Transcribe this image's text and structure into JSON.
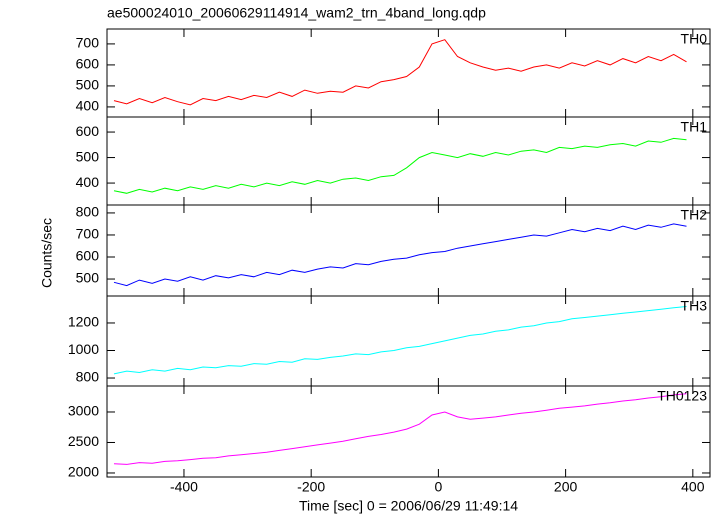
{
  "chart_data": [
    {
      "type": "line",
      "title": "ae500024010_20060629114914_wam2_trn_4band_long.qdp",
      "label": "TH0",
      "color": "#ff0000",
      "x": [
        -510,
        -490,
        -470,
        -450,
        -430,
        -410,
        -390,
        -370,
        -350,
        -330,
        -310,
        -290,
        -270,
        -250,
        -230,
        -210,
        -190,
        -170,
        -150,
        -130,
        -110,
        -90,
        -70,
        -50,
        -30,
        -10,
        10,
        30,
        50,
        70,
        90,
        110,
        130,
        150,
        170,
        190,
        210,
        230,
        250,
        270,
        290,
        310,
        330,
        350,
        370,
        390
      ],
      "values": [
        430,
        415,
        440,
        420,
        445,
        425,
        410,
        440,
        430,
        450,
        435,
        455,
        445,
        470,
        450,
        480,
        465,
        475,
        470,
        500,
        490,
        520,
        530,
        545,
        590,
        700,
        720,
        640,
        610,
        590,
        575,
        585,
        570,
        590,
        600,
        585,
        610,
        595,
        620,
        600,
        630,
        610,
        640,
        620,
        650,
        615
      ],
      "xlim": [
        -521,
        427
      ],
      "xticks": [
        -400,
        -200,
        0,
        200,
        400
      ],
      "ylim": [
        352,
        771
      ],
      "yticks": [
        400,
        500,
        600,
        700
      ]
    },
    {
      "type": "line",
      "label": "TH1",
      "color": "#00ff00",
      "x": [
        -510,
        -490,
        -470,
        -450,
        -430,
        -410,
        -390,
        -370,
        -350,
        -330,
        -310,
        -290,
        -270,
        -250,
        -230,
        -210,
        -190,
        -170,
        -150,
        -130,
        -110,
        -90,
        -70,
        -50,
        -30,
        -10,
        10,
        30,
        50,
        70,
        90,
        110,
        130,
        150,
        170,
        190,
        210,
        230,
        250,
        270,
        290,
        310,
        330,
        350,
        370,
        390
      ],
      "values": [
        370,
        360,
        375,
        365,
        380,
        370,
        385,
        375,
        390,
        380,
        395,
        385,
        400,
        390,
        405,
        395,
        410,
        400,
        415,
        420,
        410,
        425,
        430,
        460,
        500,
        520,
        510,
        500,
        515,
        505,
        520,
        510,
        525,
        530,
        520,
        540,
        535,
        545,
        540,
        550,
        555,
        545,
        565,
        560,
        575,
        570
      ],
      "xlim": [
        -521,
        427
      ],
      "xticks": [
        -400,
        -200,
        0,
        200,
        400
      ],
      "ylim": [
        314,
        659
      ],
      "yticks": [
        400,
        500,
        600
      ]
    },
    {
      "type": "line",
      "label": "TH2",
      "color": "#0000ff",
      "ylabel": "Counts/sec",
      "x": [
        -510,
        -490,
        -470,
        -450,
        -430,
        -410,
        -390,
        -370,
        -350,
        -330,
        -310,
        -290,
        -270,
        -250,
        -230,
        -210,
        -190,
        -170,
        -150,
        -130,
        -110,
        -90,
        -70,
        -50,
        -30,
        -10,
        10,
        30,
        50,
        70,
        90,
        110,
        130,
        150,
        170,
        190,
        210,
        230,
        250,
        270,
        290,
        310,
        330,
        350,
        370,
        390
      ],
      "values": [
        485,
        470,
        495,
        480,
        500,
        490,
        510,
        495,
        515,
        505,
        520,
        510,
        530,
        520,
        540,
        530,
        545,
        555,
        550,
        570,
        565,
        580,
        590,
        595,
        610,
        620,
        625,
        640,
        650,
        660,
        670,
        680,
        690,
        700,
        695,
        710,
        725,
        715,
        730,
        720,
        740,
        725,
        745,
        735,
        750,
        740
      ],
      "xlim": [
        -521,
        427
      ],
      "xticks": [
        -400,
        -200,
        0,
        200,
        400
      ],
      "ylim": [
        423,
        836
      ],
      "yticks": [
        500,
        600,
        700,
        800
      ]
    },
    {
      "type": "line",
      "label": "TH3",
      "color": "#00ffff",
      "x": [
        -510,
        -490,
        -470,
        -450,
        -430,
        -410,
        -390,
        -370,
        -350,
        -330,
        -310,
        -290,
        -270,
        -250,
        -230,
        -210,
        -190,
        -170,
        -150,
        -130,
        -110,
        -90,
        -70,
        -50,
        -30,
        -10,
        10,
        30,
        50,
        70,
        90,
        110,
        130,
        150,
        170,
        190,
        210,
        230,
        250,
        270,
        290,
        310,
        330,
        350,
        370,
        390
      ],
      "values": [
        830,
        850,
        840,
        860,
        850,
        870,
        860,
        880,
        875,
        890,
        885,
        905,
        900,
        920,
        915,
        940,
        935,
        950,
        960,
        975,
        970,
        990,
        1000,
        1020,
        1030,
        1050,
        1070,
        1090,
        1110,
        1120,
        1140,
        1150,
        1170,
        1180,
        1200,
        1210,
        1230,
        1240,
        1250,
        1260,
        1270,
        1280,
        1290,
        1300,
        1310,
        1320
      ],
      "xlim": [
        -521,
        427
      ],
      "xticks": [
        -400,
        -200,
        0,
        200,
        400
      ],
      "ylim": [
        742,
        1396
      ],
      "yticks": [
        800,
        1000,
        1200
      ]
    },
    {
      "type": "line",
      "label": "TH0123",
      "color": "#ff00ff",
      "xlabel": "Time [sec] 0 = 2006/06/29 11:49:14",
      "x": [
        -510,
        -490,
        -470,
        -450,
        -430,
        -410,
        -390,
        -370,
        -350,
        -330,
        -310,
        -290,
        -270,
        -250,
        -230,
        -210,
        -190,
        -170,
        -150,
        -130,
        -110,
        -90,
        -70,
        -50,
        -30,
        -10,
        10,
        30,
        50,
        70,
        90,
        110,
        130,
        150,
        170,
        190,
        210,
        230,
        250,
        270,
        290,
        310,
        330,
        350,
        370,
        390
      ],
      "values": [
        2150,
        2140,
        2170,
        2160,
        2190,
        2200,
        2220,
        2240,
        2250,
        2280,
        2300,
        2320,
        2340,
        2370,
        2400,
        2430,
        2460,
        2490,
        2520,
        2560,
        2600,
        2630,
        2670,
        2720,
        2800,
        2950,
        3000,
        2920,
        2880,
        2900,
        2920,
        2950,
        2980,
        3000,
        3030,
        3060,
        3080,
        3100,
        3130,
        3150,
        3180,
        3200,
        3230,
        3250,
        3280,
        3300
      ],
      "xlim": [
        -521,
        427
      ],
      "xticks": [
        -400,
        -200,
        0,
        200,
        400
      ],
      "ylim": [
        1934,
        3426
      ],
      "yticks": [
        2000,
        2500,
        3000
      ]
    }
  ]
}
